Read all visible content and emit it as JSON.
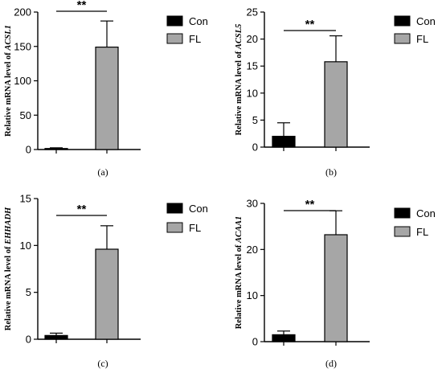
{
  "chart_data": [
    {
      "type": "bar",
      "panel_label": "(a)",
      "ylabel_prefix": "Relative mRNA level of ",
      "ylabel_gene": "ACSL1",
      "categories": [
        "Con",
        "FL"
      ],
      "values": [
        1.5,
        149
      ],
      "errors": [
        1.0,
        38
      ],
      "yticks": [
        "0",
        "50",
        "100",
        "150",
        "200"
      ],
      "ylim": [
        0,
        200
      ],
      "significance": "**",
      "colors": [
        "#000000",
        "#a6a6a6"
      ],
      "legend": [
        "Con",
        "FL"
      ]
    },
    {
      "type": "bar",
      "panel_label": "(b)",
      "ylabel_prefix": "Relative mRNA level of ",
      "ylabel_gene": "ACSL5",
      "categories": [
        "Con",
        "FL"
      ],
      "values": [
        2.0,
        15.8
      ],
      "errors": [
        2.5,
        4.8
      ],
      "yticks": [
        "0",
        "5",
        "10",
        "15",
        "20",
        "25"
      ],
      "ylim": [
        0,
        25
      ],
      "significance": "**",
      "colors": [
        "#000000",
        "#a6a6a6"
      ],
      "legend": [
        "Con",
        "FL"
      ]
    },
    {
      "type": "bar",
      "panel_label": "(c)",
      "ylabel_prefix": "Relative mRNA level of ",
      "ylabel_gene": "EHHADH",
      "categories": [
        "Con",
        "FL"
      ],
      "values": [
        0.4,
        9.6
      ],
      "errors": [
        0.25,
        2.5
      ],
      "yticks": [
        "0",
        "5",
        "10",
        "15"
      ],
      "ylim": [
        0,
        15
      ],
      "significance": "**",
      "colors": [
        "#000000",
        "#a6a6a6"
      ],
      "legend": [
        "Con",
        "FL"
      ]
    },
    {
      "type": "bar",
      "panel_label": "(d)",
      "ylabel_prefix": "Relative mRNA level of ",
      "ylabel_gene": "ACAA1",
      "categories": [
        "Con",
        "FL"
      ],
      "values": [
        1.5,
        23.2
      ],
      "errors": [
        0.8,
        5.2
      ],
      "yticks": [
        "0",
        "10",
        "20",
        "30"
      ],
      "ylim": [
        0,
        30
      ],
      "significance": "**",
      "colors": [
        "#000000",
        "#a6a6a6"
      ],
      "legend": [
        "Con",
        "FL"
      ]
    }
  ]
}
